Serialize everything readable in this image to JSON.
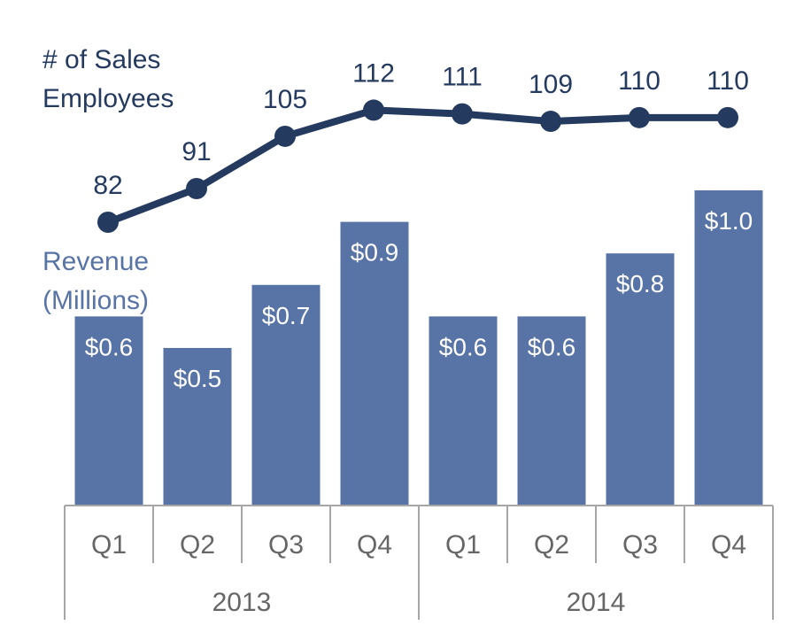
{
  "chart_data": {
    "type": "bar",
    "categories": [
      "Q1",
      "Q2",
      "Q3",
      "Q4",
      "Q1",
      "Q2",
      "Q3",
      "Q4"
    ],
    "groups": [
      {
        "label": "2013",
        "count": 4
      },
      {
        "label": "2014",
        "count": 4
      }
    ],
    "series": [
      {
        "name": "Revenue\n(Millions)",
        "type": "bar",
        "values": [
          0.6,
          0.5,
          0.7,
          0.9,
          0.6,
          0.6,
          0.8,
          1.0
        ],
        "data_labels": [
          "$0.6",
          "$0.5",
          "$0.7",
          "$0.9",
          "$0.6",
          "$0.6",
          "$0.8",
          "$1.0"
        ],
        "label_lines": [
          "Revenue",
          "(Millions)"
        ],
        "color": "#5873a5"
      },
      {
        "name": "# of Sales\nEmployees",
        "type": "line",
        "values": [
          82,
          91,
          105,
          112,
          111,
          109,
          110,
          110
        ],
        "data_labels": [
          "82",
          "91",
          "105",
          "112",
          "111",
          "109",
          "110",
          "110"
        ],
        "label_lines": [
          "# of Sales",
          "Employees"
        ],
        "color": "#243a5e"
      }
    ],
    "axis_color": "#a6a6a6",
    "tick_label_color": "#666666"
  }
}
